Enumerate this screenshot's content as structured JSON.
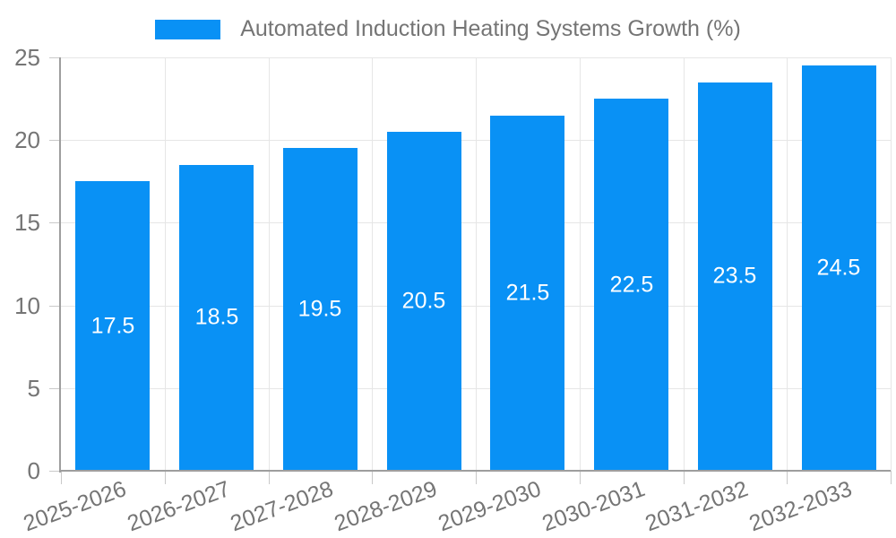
{
  "page": {
    "background": "#ffffff"
  },
  "chart_data": {
    "type": "bar",
    "title": "Automated Induction Heating Systems Growth (%)",
    "categories": [
      "2025-2026",
      "2026-2027",
      "2027-2028",
      "2028-2029",
      "2029-2030",
      "2030-2031",
      "2031-2032",
      "2032-2033"
    ],
    "values": [
      17.5,
      18.5,
      19.5,
      20.5,
      21.5,
      22.5,
      23.5,
      24.5
    ],
    "value_labels": [
      "17.5",
      "18.5",
      "19.5",
      "20.5",
      "21.5",
      "22.5",
      "23.5",
      "24.5"
    ],
    "xlabel": "",
    "ylabel": "",
    "ylim": [
      0,
      25
    ],
    "yticks": [
      0,
      5,
      10,
      15,
      20,
      25
    ],
    "grid": true,
    "legend_position": "top",
    "x_label_rotation_deg": -20,
    "colors": {
      "bar": "#0991f5",
      "value_label": "#ffffff",
      "text": "#757575",
      "gridline": "#e6e6e6",
      "tick": "#c9c9c9",
      "axis": "#9e9e9e"
    }
  }
}
